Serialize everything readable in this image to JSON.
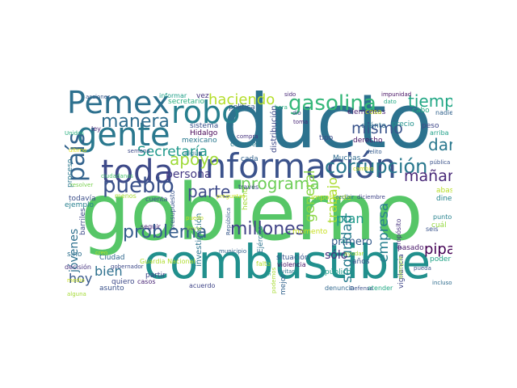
{
  "words": [
    {
      "text": "gobierno",
      "color": "#56c667"
    },
    {
      "text": "ducto",
      "color": "#2c728e"
    },
    {
      "text": "combustible",
      "color": "#21908d"
    },
    {
      "text": "información",
      "color": "#3b528b"
    },
    {
      "text": "toda",
      "color": "#3e4a89"
    },
    {
      "text": "gente",
      "color": "#2a788e"
    },
    {
      "text": "robo",
      "color": "#277f8e"
    },
    {
      "text": "Pemex",
      "color": "#2d708e"
    },
    {
      "text": "gasolina",
      "color": "#35b779"
    },
    {
      "text": "país",
      "color": "#33638d"
    },
    {
      "text": "pueblo",
      "color": "#3b528b"
    },
    {
      "text": "manera",
      "color": "#2f6c8e"
    },
    {
      "text": "problema",
      "color": "#365d8d"
    },
    {
      "text": "millones",
      "color": "#414487"
    },
    {
      "text": "corrupción",
      "color": "#2a788e"
    },
    {
      "text": "programa",
      "color": "#6ece58"
    },
    {
      "text": "parte",
      "color": "#3e4a89"
    },
    {
      "text": "apoyo",
      "color": "#9fda3a"
    },
    {
      "text": "haciendo",
      "color": "#b5de2b"
    },
    {
      "text": "tiempo",
      "color": "#22a785"
    },
    {
      "text": "Secretaría",
      "color": "#1f988b"
    },
    {
      "text": "mañana",
      "color": "#482878"
    },
    {
      "text": "dar",
      "color": "#2a788e"
    },
    {
      "text": "mismo",
      "color": "#3a548c"
    },
    {
      "text": "pipas",
      "color": "#440154"
    },
    {
      "text": "empresa",
      "color": "#277f8e"
    },
    {
      "text": "seguridad",
      "color": "#287d8e"
    },
    {
      "text": "trabajo",
      "color": "#addc30"
    },
    {
      "text": "plan",
      "color": "#1f9a8a"
    },
    {
      "text": "general",
      "color": "#8bd646"
    },
    {
      "text": "hoy",
      "color": "#38598c"
    },
    {
      "text": "bien",
      "color": "#2d708e"
    },
    {
      "text": "persona",
      "color": "#443983"
    },
    {
      "text": "jóvenes",
      "color": "#2d708e"
    },
    {
      "text": "sólo",
      "color": "#46327e"
    },
    {
      "text": "primero",
      "color": "#365c8d"
    },
    {
      "text": "distribución",
      "color": "#3e4989"
    },
    {
      "text": "investigación",
      "color": "#2c738e"
    },
    {
      "text": "Ejército",
      "color": "#2c738e"
    },
    {
      "text": "momento",
      "color": "#c8e020"
    },
    {
      "text": "vigilancia",
      "color": "#3f4788"
    },
    {
      "text": "abasto",
      "color": "#b8de29"
    },
    {
      "text": "dinero",
      "color": "#25848e"
    },
    {
      "text": "precio",
      "color": "#21918c"
    },
    {
      "text": "derecho",
      "color": "#471365"
    },
    {
      "text": "cuánto",
      "color": "#2e6e8e"
    },
    {
      "text": "elementos",
      "color": "#481f70"
    },
    {
      "text": "cosa",
      "color": "#c0df25"
    },
    {
      "text": "cabo",
      "color": "#25ac82"
    },
    {
      "text": "peso",
      "color": "#3f4788"
    },
    {
      "text": "política",
      "color": "#38598c"
    },
    {
      "text": "vez",
      "color": "#46327e"
    },
    {
      "text": "secretario",
      "color": "#29af7f"
    },
    {
      "text": "informar",
      "color": "#1fa088"
    },
    {
      "text": "sistema",
      "color": "#3b528b"
    },
    {
      "text": "Hidalgo",
      "color": "#440154"
    },
    {
      "text": "mexicano",
      "color": "#2a788e"
    },
    {
      "text": "conocer",
      "color": "#287c8e"
    },
    {
      "text": "cada",
      "color": "#33638d"
    },
    {
      "text": "hecho",
      "color": "#a2da37"
    },
    {
      "text": "situación",
      "color": "#39568c"
    },
    {
      "text": "Muchas",
      "color": "#2f6b8e"
    },
    {
      "text": "importante",
      "color": "#c2df23"
    },
    {
      "text": "ejemplo",
      "color": "#277f8e"
    },
    {
      "text": "todavía",
      "color": "#3c4f8a"
    },
    {
      "text": "proceso",
      "color": "#2a788e"
    },
    {
      "text": "barriles",
      "color": "#3e4a89"
    },
    {
      "text": "Ciudad",
      "color": "#31688e"
    },
    {
      "text": "presupuesto",
      "color": "#39558c"
    },
    {
      "text": "sino",
      "color": "#2d708e"
    },
    {
      "text": "decisión",
      "color": "#46327e"
    },
    {
      "text": "quiero",
      "color": "#3e4a89"
    },
    {
      "text": "asunto",
      "color": "#3b528b"
    },
    {
      "text": "partir",
      "color": "#3f4788"
    },
    {
      "text": "casos",
      "color": "#482475"
    },
    {
      "text": "mejor",
      "color": "#33638d"
    },
    {
      "text": "público",
      "color": "#1f9e89"
    },
    {
      "text": "denuncia",
      "color": "#31688e"
    },
    {
      "text": "pasado",
      "color": "#481769"
    },
    {
      "text": "años",
      "color": "#3b528b"
    },
    {
      "text": "atender",
      "color": "#22a884"
    },
    {
      "text": "propósito",
      "color": "#46327e"
    },
    {
      "text": "poder",
      "color": "#20a386"
    },
    {
      "text": "cuál",
      "color": "#95d840"
    },
    {
      "text": "punto",
      "color": "#26828e"
    },
    {
      "text": "Unidos",
      "color": "#29af7f"
    },
    {
      "text": "ley",
      "color": "#482878"
    },
    {
      "text": "semana",
      "color": "#3e4a89"
    },
    {
      "text": "cuenta",
      "color": "#3b528b"
    },
    {
      "text": "menos",
      "color": "#a8db34"
    },
    {
      "text": "seguir",
      "color": "#482475"
    },
    {
      "text": "través",
      "color": "#3e4989"
    },
    {
      "text": "tipo",
      "color": "#3e4a89"
    },
    {
      "text": "toma",
      "color": "#482878"
    },
    {
      "text": "nadie",
      "color": "#33638d"
    },
    {
      "text": "arriba",
      "color": "#1fa088"
    },
    {
      "text": "seis",
      "color": "#3a548c"
    },
    {
      "text": "trabajando",
      "color": "#3b528b"
    },
    {
      "text": "delito",
      "color": "#365c8d"
    },
    {
      "text": "acciones",
      "color": "#38598c"
    },
    {
      "text": "impunidad",
      "color": "#471164"
    },
    {
      "text": "dato",
      "color": "#22a884"
    },
    {
      "text": "sido",
      "color": "#482878"
    },
    {
      "text": "hora",
      "color": "#29af7f"
    },
    {
      "text": "dio",
      "color": "#3e4a89"
    },
    {
      "text": "acuerdo",
      "color": "#404688"
    },
    {
      "text": "puedo",
      "color": "#c2df23"
    },
    {
      "text": "llevar",
      "color": "#a0da39"
    },
    {
      "text": "municipio",
      "color": "#33638d"
    },
    {
      "text": "gobernador",
      "color": "#3e4a89"
    },
    {
      "text": "creo",
      "color": "#b5de2b"
    },
    {
      "text": "Guardia Nacional",
      "color": "#b0dd2f"
    },
    {
      "text": "República",
      "color": "#38598c"
    },
    {
      "text": "violencia",
      "color": "#471063"
    },
    {
      "text": "falta",
      "color": "#b5de2b"
    },
    {
      "text": "saber",
      "color": "#1fa088"
    },
    {
      "text": "incluso",
      "color": "#2f6c8e"
    },
    {
      "text": "siempre",
      "color": "#a2da37"
    },
    {
      "text": "pueda",
      "color": "#3b528b"
    },
    {
      "text": "ayudar",
      "color": "#a5db36"
    },
    {
      "text": "ir",
      "color": "#1f968b"
    },
    {
      "text": "recibir",
      "color": "#2c738e"
    },
    {
      "text": "diciembre",
      "color": "#404588"
    },
    {
      "text": "Defensa",
      "color": "#3b528b"
    },
    {
      "text": "responsabilidad",
      "color": "#3e4a89"
    },
    {
      "text": "cambio",
      "color": "#dde318"
    },
    {
      "text": "pública",
      "color": "#3b528b"
    },
    {
      "text": "evitar",
      "color": "#2c738e"
    },
    {
      "text": "algún",
      "color": "#2a788e"
    },
    {
      "text": "ciudadanos",
      "color": "#4ac16d"
    },
    {
      "text": "último",
      "color": "#e5e419"
    },
    {
      "text": "podemos",
      "color": "#a8db34"
    },
    {
      "text": "compra",
      "color": "#46327e"
    },
    {
      "text": "resolver",
      "color": "#7ad151"
    },
    {
      "text": "medio",
      "color": "#c8e020"
    },
    {
      "text": "alguna",
      "color": "#a5db36"
    },
    {
      "text": "preguntas",
      "color": "#c8e020"
    }
  ]
}
